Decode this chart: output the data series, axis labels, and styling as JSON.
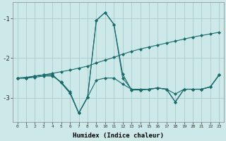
{
  "xlabel": "Humidex (Indice chaleur)",
  "bg_color": "#cce8e8",
  "grid_color": "#aacccc",
  "line_color": "#1a6b6b",
  "marker": "D",
  "markersize": 2,
  "linewidth": 0.8,
  "xlim": [
    -0.5,
    23.5
  ],
  "ylim": [
    -3.6,
    -0.6
  ],
  "yticks": [
    -3,
    -2,
    -1
  ],
  "xticks": [
    0,
    1,
    2,
    3,
    4,
    5,
    6,
    7,
    8,
    9,
    10,
    11,
    12,
    13,
    14,
    15,
    16,
    17,
    18,
    19,
    20,
    21,
    22,
    23
  ],
  "series": [
    {
      "x": [
        0,
        1,
        2,
        3,
        4,
        5,
        6,
        7,
        8,
        9,
        10,
        11,
        12,
        13,
        14,
        15,
        16,
        17,
        18,
        19,
        20,
        21,
        22,
        23
      ],
      "y": [
        -2.5,
        -2.48,
        -2.45,
        -2.42,
        -2.38,
        -2.34,
        -2.3,
        -2.25,
        -2.2,
        -2.12,
        -2.05,
        -1.98,
        -1.9,
        -1.83,
        -1.77,
        -1.72,
        -1.67,
        -1.62,
        -1.57,
        -1.52,
        -1.47,
        -1.43,
        -1.39,
        -1.35
      ]
    },
    {
      "x": [
        0,
        1,
        2,
        3,
        4,
        5,
        6,
        7,
        8,
        9,
        10,
        11,
        12,
        13,
        14,
        15,
        16,
        17,
        18,
        19,
        20,
        21,
        22,
        23
      ],
      "y": [
        -2.5,
        -2.5,
        -2.45,
        -2.42,
        -2.42,
        -2.62,
        -2.88,
        -3.38,
        -2.98,
        -1.05,
        -0.85,
        -1.15,
        -2.4,
        -2.8,
        -2.8,
        -2.78,
        -2.75,
        -2.78,
        -2.9,
        -2.78,
        -2.78,
        -2.78,
        -2.72,
        -2.42
      ]
    },
    {
      "x": [
        0,
        1,
        2,
        3,
        4,
        5,
        6,
        7,
        8,
        9,
        10,
        11,
        12,
        13,
        14,
        15,
        16,
        17,
        18,
        19,
        20,
        21,
        22,
        23
      ],
      "y": [
        -2.5,
        -2.5,
        -2.45,
        -2.42,
        -2.42,
        -2.62,
        -2.88,
        -3.38,
        -2.98,
        -1.05,
        -0.85,
        -1.15,
        -2.5,
        -2.78,
        -2.8,
        -2.78,
        -2.75,
        -2.78,
        -3.1,
        -2.78,
        -2.78,
        -2.78,
        -2.72,
        -2.42
      ]
    },
    {
      "x": [
        0,
        1,
        2,
        3,
        4,
        5,
        6,
        7,
        8,
        9,
        10,
        11,
        12,
        13,
        14,
        15,
        16,
        17,
        18,
        19,
        20,
        21,
        22,
        23
      ],
      "y": [
        -2.5,
        -2.5,
        -2.48,
        -2.45,
        -2.45,
        -2.6,
        -2.85,
        -3.38,
        -2.98,
        -2.55,
        -2.5,
        -2.5,
        -2.65,
        -2.78,
        -2.78,
        -2.78,
        -2.75,
        -2.78,
        -3.1,
        -2.78,
        -2.78,
        -2.78,
        -2.72,
        -2.42
      ]
    }
  ]
}
